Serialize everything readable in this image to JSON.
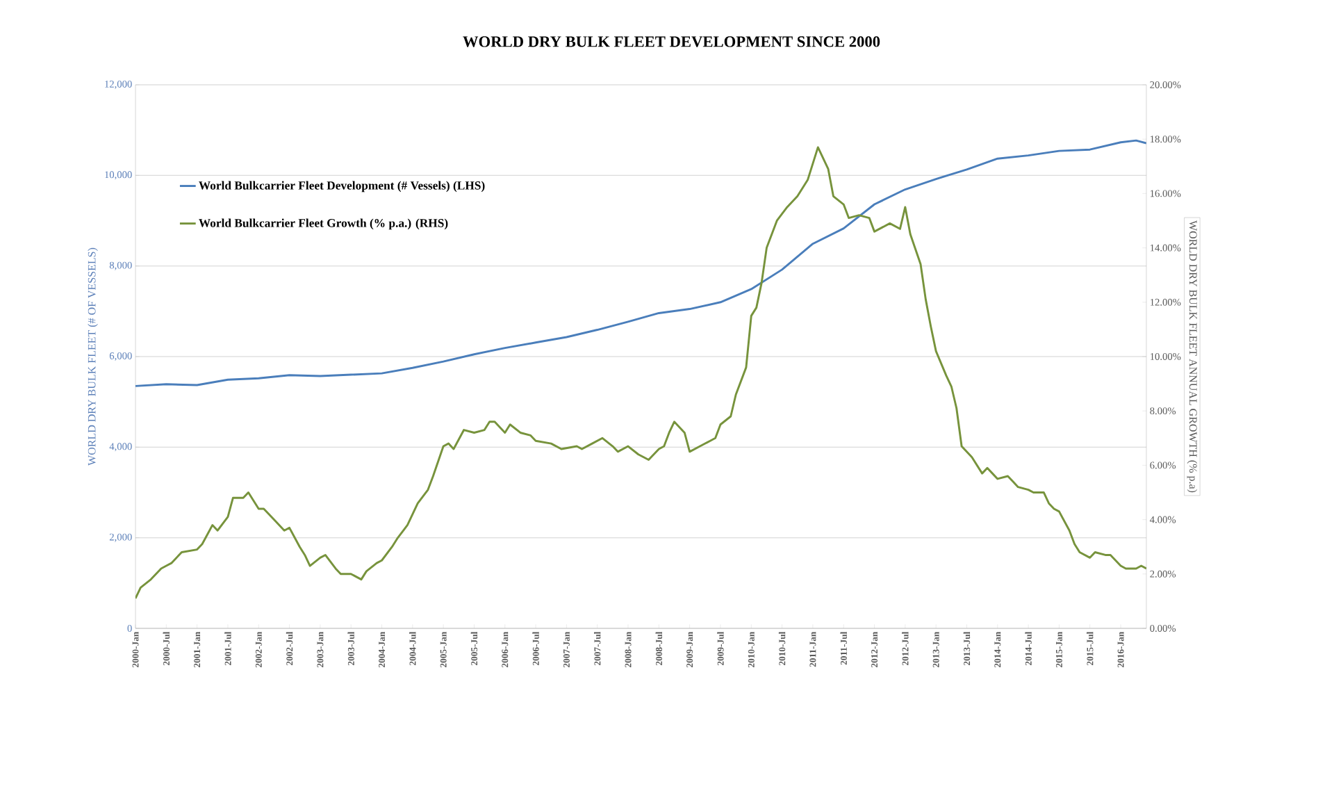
{
  "chart_data": {
    "type": "line",
    "title": "WORLD DRY BULK FLEET DEVELOPMENT SINCE 2000",
    "ylabel": "WORLD DRY BULK FLEET (# OF VESSELS)",
    "y2label": "WORLD DRY BULK FLEET ANNUAL GROWTH (% p.a)",
    "xlim": [
      "2000-01",
      "2016-06"
    ],
    "xticks": [
      {
        "value": "2000-01",
        "label": "2000-Jan"
      },
      {
        "value": "2000-07",
        "label": "2000-Jul"
      },
      {
        "value": "2001-01",
        "label": "2001-Jan"
      },
      {
        "value": "2001-07",
        "label": "2001-Jul"
      },
      {
        "value": "2002-01",
        "label": "2002-Jan"
      },
      {
        "value": "2002-07",
        "label": "2002-Jul"
      },
      {
        "value": "2003-01",
        "label": "2003-Jan"
      },
      {
        "value": "2003-07",
        "label": "2003-Jul"
      },
      {
        "value": "2004-01",
        "label": "2004-Jan"
      },
      {
        "value": "2004-07",
        "label": "2004-Jul"
      },
      {
        "value": "2005-01",
        "label": "2005-Jan"
      },
      {
        "value": "2005-07",
        "label": "2005-Jul"
      },
      {
        "value": "2006-01",
        "label": "2006-Jan"
      },
      {
        "value": "2006-07",
        "label": "2006-Jul"
      },
      {
        "value": "2007-01",
        "label": "2007-Jan"
      },
      {
        "value": "2007-07",
        "label": "2007-Jul"
      },
      {
        "value": "2008-01",
        "label": "2008-Jan"
      },
      {
        "value": "2008-07",
        "label": "2008-Jul"
      },
      {
        "value": "2009-01",
        "label": "2009-Jan"
      },
      {
        "value": "2009-07",
        "label": "2009-Jul"
      },
      {
        "value": "2010-01",
        "label": "2010-Jan"
      },
      {
        "value": "2010-07",
        "label": "2010-Jul"
      },
      {
        "value": "2011-01",
        "label": "2011-Jan"
      },
      {
        "value": "2011-07",
        "label": "2011-Jul"
      },
      {
        "value": "2012-01",
        "label": "2012-Jan"
      },
      {
        "value": "2012-07",
        "label": "2012-Jul"
      },
      {
        "value": "2013-01",
        "label": "2013-Jan"
      },
      {
        "value": "2013-07",
        "label": "2013-Jul"
      },
      {
        "value": "2014-01",
        "label": "2014-Jan"
      },
      {
        "value": "2014-07",
        "label": "2014-Jul"
      },
      {
        "value": "2015-01",
        "label": "2015-Jan"
      },
      {
        "value": "2015-07",
        "label": "2015-Jul"
      },
      {
        "value": "2016-01",
        "label": "2016-Jan"
      }
    ],
    "ylim": [
      0,
      12000
    ],
    "yticks": [
      {
        "value": 0,
        "label": "0"
      },
      {
        "value": 2000,
        "label": "2,000"
      },
      {
        "value": 4000,
        "label": "4,000"
      },
      {
        "value": 6000,
        "label": "6,000"
      },
      {
        "value": 8000,
        "label": "8,000"
      },
      {
        "value": 10000,
        "label": "10,000"
      },
      {
        "value": 12000,
        "label": "12,000"
      }
    ],
    "y2lim": [
      0,
      20
    ],
    "y2ticks": [
      {
        "value": 0,
        "label": "0.00%"
      },
      {
        "value": 2,
        "label": "2.00%"
      },
      {
        "value": 4,
        "label": "4.00%"
      },
      {
        "value": 6,
        "label": "6.00%"
      },
      {
        "value": 8,
        "label": "8.00%"
      },
      {
        "value": 10,
        "label": "10.00%"
      },
      {
        "value": 12,
        "label": "12.00%"
      },
      {
        "value": 14,
        "label": "14.00%"
      },
      {
        "value": 16,
        "label": "16.00%"
      },
      {
        "value": 18,
        "label": "18.00%"
      },
      {
        "value": 20,
        "label": "20.00%"
      }
    ],
    "grid": "y",
    "legend": "top left",
    "series": [
      {
        "name": "World Bulkcarrier Fleet Development (# Vessels) (LHS)",
        "color": "#4a7ebb",
        "axis": "y",
        "x": [
          "2000-01",
          "2000-07",
          "2001-01",
          "2001-07",
          "2002-01",
          "2002-07",
          "2003-01",
          "2003-07",
          "2004-01",
          "2004-07",
          "2005-01",
          "2005-07",
          "2006-01",
          "2006-07",
          "2007-01",
          "2007-07",
          "2008-01",
          "2008-07",
          "2009-01",
          "2009-07",
          "2010-01",
          "2010-07",
          "2011-01",
          "2011-07",
          "2012-01",
          "2012-07",
          "2013-01",
          "2013-07",
          "2014-01",
          "2014-07",
          "2015-01",
          "2015-07",
          "2016-01",
          "2016-04",
          "2016-06"
        ],
        "values": [
          5350,
          5390,
          5370,
          5490,
          5520,
          5590,
          5570,
          5600,
          5630,
          5750,
          5890,
          6050,
          6190,
          6310,
          6430,
          6590,
          6770,
          6960,
          7050,
          7200,
          7490,
          7920,
          8490,
          8830,
          9360,
          9690,
          9920,
          10130,
          10370,
          10440,
          10540,
          10570,
          10730,
          10770,
          10710
        ]
      },
      {
        "name": "World Bulkcarrier Fleet Growth (% p.a.) (RHS)",
        "color": "#77933c",
        "axis": "y2",
        "x": [
          "2000-01",
          "2000-02",
          "2000-04",
          "2000-06",
          "2000-07",
          "2000-08",
          "2000-10",
          "2001-01",
          "2001-02",
          "2001-04",
          "2001-05",
          "2001-07",
          "2001-08",
          "2001-10",
          "2001-11",
          "2002-01",
          "2002-02",
          "2002-04",
          "2002-06",
          "2002-07",
          "2002-09",
          "2002-10",
          "2002-11",
          "2003-01",
          "2003-02",
          "2003-04",
          "2003-05",
          "2003-07",
          "2003-08",
          "2003-09",
          "2003-10",
          "2003-12",
          "2004-01",
          "2004-03",
          "2004-04",
          "2004-06",
          "2004-08",
          "2004-10",
          "2004-11",
          "2005-01",
          "2005-02",
          "2005-03",
          "2005-05",
          "2005-07",
          "2005-09",
          "2005-10",
          "2005-11",
          "2006-01",
          "2006-02",
          "2006-04",
          "2006-06",
          "2006-07",
          "2006-10",
          "2006-12",
          "2007-03",
          "2007-04",
          "2007-06",
          "2007-08",
          "2007-10",
          "2007-11",
          "2008-01",
          "2008-03",
          "2008-05",
          "2008-07",
          "2008-08",
          "2008-09",
          "2008-10",
          "2008-12",
          "2009-01",
          "2009-03",
          "2009-05",
          "2009-06",
          "2009-07",
          "2009-09",
          "2009-10",
          "2009-12",
          "2010-01",
          "2010-02",
          "2010-03",
          "2010-04",
          "2010-06",
          "2010-08",
          "2010-10",
          "2010-11",
          "2010-12",
          "2011-02",
          "2011-04",
          "2011-05",
          "2011-07",
          "2011-08",
          "2011-10",
          "2011-12",
          "2012-01",
          "2012-03",
          "2012-04",
          "2012-06",
          "2012-07",
          "2012-08",
          "2012-10",
          "2012-11",
          "2012-12",
          "2013-01",
          "2013-03",
          "2013-04",
          "2013-05",
          "2013-06",
          "2013-08",
          "2013-10",
          "2013-11",
          "2013-12",
          "2014-01",
          "2014-03",
          "2014-04",
          "2014-05",
          "2014-07",
          "2014-08",
          "2014-10",
          "2014-11",
          "2014-12",
          "2015-01",
          "2015-03",
          "2015-04",
          "2015-05",
          "2015-07",
          "2015-08",
          "2015-10",
          "2015-11",
          "2016-01",
          "2016-02",
          "2016-04",
          "2016-05",
          "2016-06"
        ],
        "values": [
          1.1,
          1.5,
          1.8,
          2.2,
          2.3,
          2.4,
          2.8,
          2.9,
          3.1,
          3.8,
          3.6,
          4.1,
          4.8,
          4.8,
          5.0,
          4.4,
          4.4,
          4.0,
          3.6,
          3.7,
          3.0,
          2.7,
          2.3,
          2.6,
          2.7,
          2.2,
          2.0,
          2.0,
          1.9,
          1.8,
          2.1,
          2.4,
          2.5,
          3.0,
          3.3,
          3.8,
          4.6,
          5.1,
          5.6,
          6.7,
          6.8,
          6.6,
          7.3,
          7.2,
          7.3,
          7.6,
          7.6,
          7.2,
          7.5,
          7.2,
          7.1,
          6.9,
          6.8,
          6.6,
          6.7,
          6.6,
          6.8,
          7.0,
          6.7,
          6.5,
          6.7,
          6.4,
          6.2,
          6.6,
          6.7,
          7.2,
          7.6,
          7.2,
          6.5,
          6.7,
          6.9,
          7.0,
          7.5,
          7.8,
          8.6,
          9.6,
          11.5,
          11.8,
          12.7,
          14.0,
          15.0,
          15.5,
          15.9,
          16.2,
          16.5,
          17.7,
          16.9,
          15.9,
          15.6,
          15.1,
          15.2,
          15.1,
          14.6,
          14.8,
          14.9,
          14.7,
          15.5,
          14.5,
          13.4,
          12.1,
          11.1,
          10.2,
          9.3,
          8.9,
          8.1,
          6.7,
          6.3,
          5.7,
          5.9,
          5.7,
          5.5,
          5.6,
          5.4,
          5.2,
          5.1,
          5.0,
          5.0,
          4.6,
          4.4,
          4.3,
          3.6,
          3.1,
          2.8,
          2.6,
          2.8,
          2.7,
          2.7,
          2.3,
          2.2,
          2.2,
          2.3,
          2.2
        ]
      }
    ]
  }
}
